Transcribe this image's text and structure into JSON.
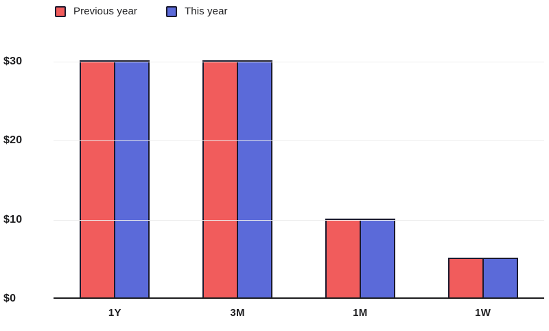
{
  "chart_data": {
    "type": "bar",
    "title": "",
    "categories": [
      "1Y",
      "3M",
      "1M",
      "1W"
    ],
    "series": [
      {
        "name": "Previous year",
        "color": "#F15C5C",
        "values": [
          30,
          30,
          10,
          5
        ]
      },
      {
        "name": "This year",
        "color": "#5B6AD9",
        "values": [
          30,
          30,
          10,
          5
        ]
      }
    ],
    "ylim": [
      0,
      30
    ],
    "y_ticks": [
      {
        "label": "$30",
        "value": 30
      },
      {
        "label": "$20",
        "value": 20
      },
      {
        "label": "$10",
        "value": 10
      },
      {
        "label": "$0",
        "value": 0
      }
    ],
    "grid": "horizontal",
    "legend_position": "top-left",
    "colors": {
      "bar_border": "#1A1A2E",
      "gridline": "#ECECEC",
      "axis_line": "#1C1C1E",
      "text": "#1D1D1F",
      "background": "#FFFFFF"
    }
  }
}
